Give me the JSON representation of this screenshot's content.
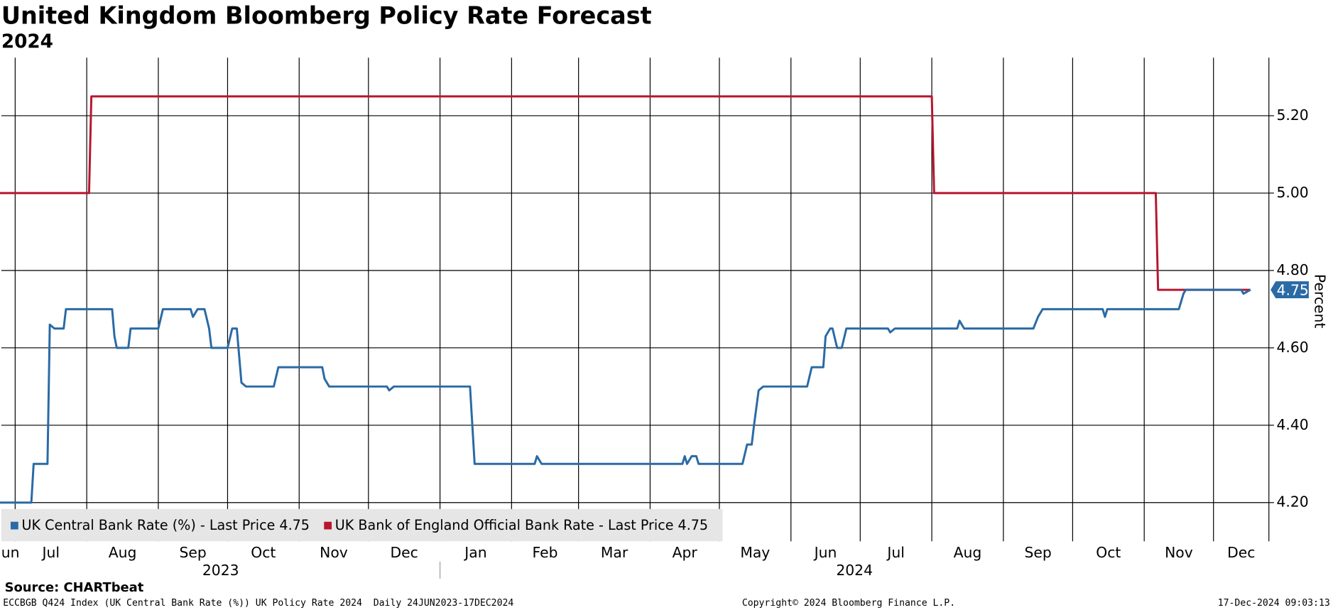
{
  "chart_data": {
    "type": "line",
    "title": "United Kingdom Bloomberg Policy Rate Forecast",
    "subtitle": "2024",
    "y_label": "Percent",
    "source": "Source: CHARTbeat",
    "footer_left": "ECCBGB Q424 Index (UK Central Bank Rate (%)) UK Policy Rate 2024  Daily 24JUN2023-17DEC2024",
    "footer_center": "Copyright© 2024 Bloomberg Finance L.P.",
    "footer_right": "17-Dec-2024 09:03:13",
    "xlim": [
      "2023-06-25",
      "2024-12-25"
    ],
    "xticks": [
      {
        "value": "2023-06-01",
        "label": "Jun"
      },
      {
        "value": "2023-07-01",
        "label": "Jul"
      },
      {
        "value": "2023-08-01",
        "label": "Aug"
      },
      {
        "value": "2023-09-01",
        "label": "Sep"
      },
      {
        "value": "2023-10-01",
        "label": "Oct"
      },
      {
        "value": "2023-11-01",
        "label": "Nov"
      },
      {
        "value": "2023-12-01",
        "label": "Dec"
      },
      {
        "value": "2024-01-01",
        "label": "Jan"
      },
      {
        "value": "2024-02-01",
        "label": "Feb"
      },
      {
        "value": "2024-03-01",
        "label": "Mar"
      },
      {
        "value": "2024-04-01",
        "label": "Apr"
      },
      {
        "value": "2024-05-01",
        "label": "May"
      },
      {
        "value": "2024-06-01",
        "label": "Jun"
      },
      {
        "value": "2024-07-01",
        "label": "Jul"
      },
      {
        "value": "2024-08-01",
        "label": "Aug"
      },
      {
        "value": "2024-09-01",
        "label": "Sep"
      },
      {
        "value": "2024-10-01",
        "label": "Oct"
      },
      {
        "value": "2024-11-01",
        "label": "Nov"
      },
      {
        "value": "2024-12-01",
        "label": "Dec"
      }
    ],
    "years": [
      {
        "value": "2023-01-01",
        "label": "2023"
      },
      {
        "value": "2024-01-01",
        "label": "2024"
      }
    ],
    "ylim": [
      4.1,
      5.35
    ],
    "yticks": [
      {
        "value": 4.2,
        "label": "4.20"
      },
      {
        "value": 4.4,
        "label": "4.40"
      },
      {
        "value": 4.6,
        "label": "4.60"
      },
      {
        "value": 4.8,
        "label": "4.80"
      },
      {
        "value": 5.0,
        "label": "5.00"
      },
      {
        "value": 5.2,
        "label": "5.20"
      }
    ],
    "grid": true,
    "series": [
      {
        "name": "UK Central Bank Rate (%) - Last Price 4.75",
        "color": "#2a6aa5",
        "last_price": 4.75,
        "x": [
          "2023-06-24",
          "2023-07-08",
          "2023-07-09",
          "2023-07-15",
          "2023-07-16",
          "2023-07-18",
          "2023-07-22",
          "2023-07-23",
          "2023-08-12",
          "2023-08-13",
          "2023-08-14",
          "2023-08-19",
          "2023-08-20",
          "2023-09-01",
          "2023-09-03",
          "2023-09-15",
          "2023-09-16",
          "2023-09-18",
          "2023-09-21",
          "2023-09-23",
          "2023-09-24",
          "2023-10-01",
          "2023-10-03",
          "2023-10-05",
          "2023-10-07",
          "2023-10-09",
          "2023-10-21",
          "2023-10-23",
          "2023-11-11",
          "2023-11-12",
          "2023-11-14",
          "2023-12-09",
          "2023-12-10",
          "2023-12-12",
          "2024-01-14",
          "2024-01-16",
          "2024-02-11",
          "2024-02-12",
          "2024-02-14",
          "2024-04-15",
          "2024-04-16",
          "2024-04-17",
          "2024-04-19",
          "2024-04-21",
          "2024-04-22",
          "2024-05-11",
          "2024-05-13",
          "2024-05-15",
          "2024-05-16",
          "2024-05-18",
          "2024-05-20",
          "2024-06-08",
          "2024-06-10",
          "2024-06-15",
          "2024-06-16",
          "2024-06-18",
          "2024-06-19",
          "2024-06-21",
          "2024-06-23",
          "2024-06-25",
          "2024-07-13",
          "2024-07-14",
          "2024-07-16",
          "2024-08-12",
          "2024-08-13",
          "2024-08-15",
          "2024-09-14",
          "2024-09-16",
          "2024-09-18",
          "2024-10-14",
          "2024-10-15",
          "2024-10-16",
          "2024-11-16",
          "2024-11-18",
          "2024-11-19",
          "2024-12-13",
          "2024-12-14",
          "2024-12-17"
        ],
        "values": [
          4.2,
          4.2,
          4.3,
          4.3,
          4.66,
          4.65,
          4.65,
          4.7,
          4.7,
          4.63,
          4.6,
          4.6,
          4.65,
          4.65,
          4.7,
          4.7,
          4.68,
          4.7,
          4.7,
          4.65,
          4.6,
          4.6,
          4.65,
          4.65,
          4.51,
          4.5,
          4.5,
          4.55,
          4.55,
          4.52,
          4.5,
          4.5,
          4.49,
          4.5,
          4.5,
          4.3,
          4.3,
          4.32,
          4.3,
          4.3,
          4.32,
          4.3,
          4.32,
          4.32,
          4.3,
          4.3,
          4.35,
          4.35,
          4.4,
          4.49,
          4.5,
          4.5,
          4.55,
          4.55,
          4.63,
          4.65,
          4.65,
          4.6,
          4.6,
          4.65,
          4.65,
          4.64,
          4.65,
          4.65,
          4.67,
          4.65,
          4.65,
          4.68,
          4.7,
          4.7,
          4.68,
          4.7,
          4.7,
          4.74,
          4.75,
          4.75,
          4.74,
          4.75
        ]
      },
      {
        "name": "UK Bank of England Official Bank Rate - Last Price 4.75",
        "color": "#b8152f",
        "x": [
          "2023-06-24",
          "2023-08-02",
          "2023-08-03",
          "2024-08-01",
          "2024-08-02",
          "2024-11-06",
          "2024-11-07",
          "2024-12-17"
        ],
        "values": [
          5.0,
          5.0,
          5.25,
          5.25,
          5.0,
          5.0,
          4.75,
          4.75
        ]
      }
    ]
  }
}
